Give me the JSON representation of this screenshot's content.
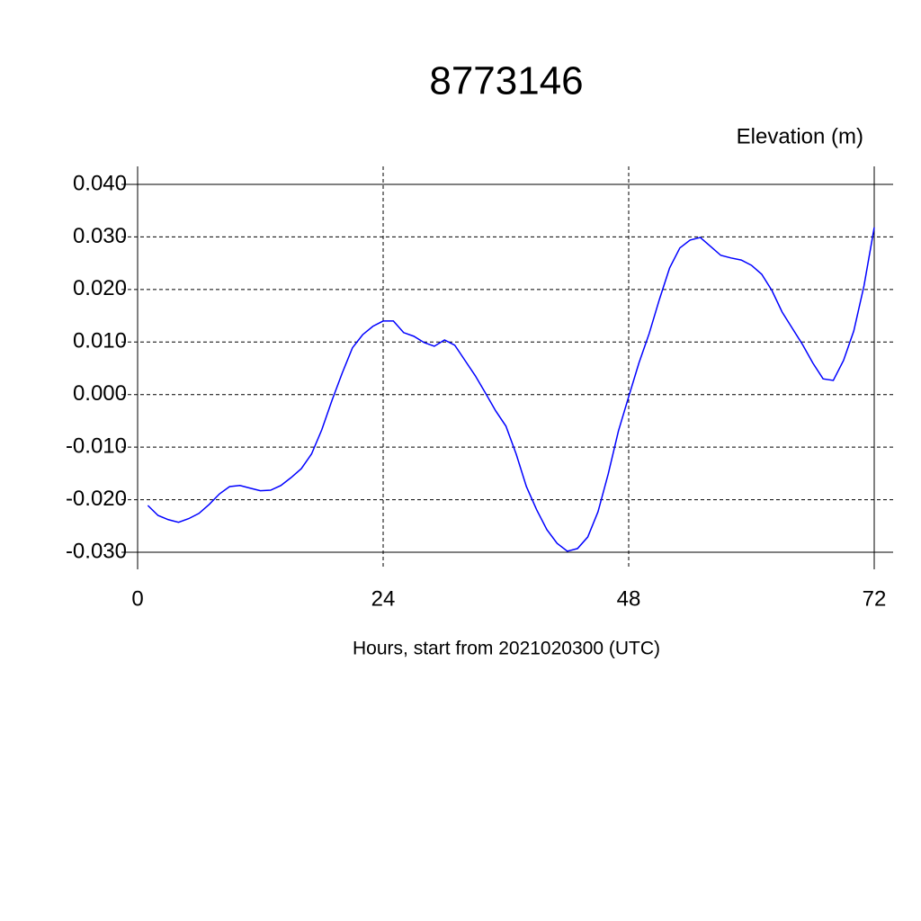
{
  "chart_data": {
    "type": "line",
    "title": "8773146",
    "ylabel": "Elevation (m)",
    "xlabel": "Hours, start from 2021020300 (UTC)",
    "x": [
      1,
      2,
      3,
      4,
      5,
      6,
      7,
      8,
      9,
      10,
      11,
      12,
      13,
      14,
      15,
      16,
      17,
      18,
      19,
      20,
      21,
      22,
      23,
      24,
      25,
      26,
      27,
      28,
      29,
      30,
      31,
      32,
      33,
      34,
      35,
      36,
      37,
      38,
      39,
      40,
      41,
      42,
      43,
      44,
      45,
      46,
      47,
      48,
      49,
      50,
      51,
      52,
      53,
      54,
      55,
      56,
      57,
      58,
      59,
      60,
      61,
      62,
      63,
      64,
      65,
      66,
      67,
      68,
      69,
      70,
      71,
      72
    ],
    "series": [
      {
        "color": "#0000ff",
        "values": [
          -0.0211,
          -0.023,
          -0.0238,
          -0.0243,
          -0.0236,
          -0.0226,
          -0.0209,
          -0.0189,
          -0.0175,
          -0.0173,
          -0.0178,
          -0.0183,
          -0.0182,
          -0.0173,
          -0.0158,
          -0.0141,
          -0.0113,
          -0.0067,
          -0.0011,
          0.0041,
          0.0089,
          0.0114,
          0.013,
          0.014,
          0.014,
          0.0118,
          0.0111,
          0.0099,
          0.0092,
          0.0104,
          0.0094,
          0.0065,
          0.0036,
          0.0003,
          -0.0031,
          -0.006,
          -0.0113,
          -0.0175,
          -0.0219,
          -0.0257,
          -0.0283,
          -0.0298,
          -0.0293,
          -0.0271,
          -0.0223,
          -0.0151,
          -0.0069,
          -0.0004,
          0.006,
          0.0116,
          0.0181,
          0.0241,
          0.0279,
          0.0294,
          0.0299,
          0.0282,
          0.0265,
          0.026,
          0.0256,
          0.0246,
          0.0229,
          0.0198,
          0.0157,
          0.0126,
          0.0095,
          0.006,
          0.003,
          0.0027,
          0.0065,
          0.0121,
          0.0207,
          0.0318
        ]
      }
    ],
    "xlim": [
      0,
      72
    ],
    "xticks": [
      0,
      24,
      48,
      72
    ],
    "ylim": [
      -0.03,
      0.04
    ],
    "yticks": [
      {
        "value": -0.03,
        "label": "-0.030"
      },
      {
        "value": -0.02,
        "label": "-0.020"
      },
      {
        "value": -0.01,
        "label": "-0.010"
      },
      {
        "value": 0,
        "label": "0.000"
      },
      {
        "value": 0.01,
        "label": "0.010"
      },
      {
        "value": 0.02,
        "label": "0.020"
      },
      {
        "value": 0.03,
        "label": "0.030"
      },
      {
        "value": 0.04,
        "label": "0.040"
      }
    ],
    "grid": true
  }
}
